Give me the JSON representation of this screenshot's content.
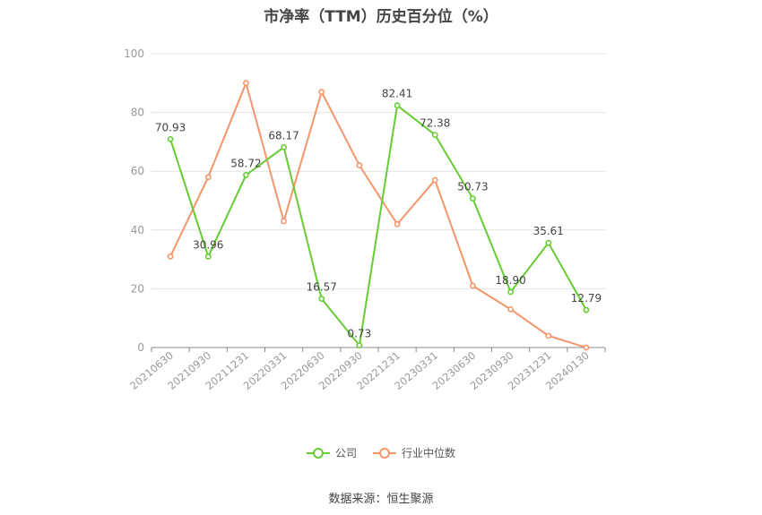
{
  "chart_data": {
    "type": "line",
    "title": "市净率（TTM）历史百分位（%）",
    "categories": [
      "20210630",
      "20210930",
      "20211231",
      "20220331",
      "20220630",
      "20220930",
      "20221231",
      "20230331",
      "20230630",
      "20230930",
      "20231231",
      "20240130"
    ],
    "series": [
      {
        "name": "公司",
        "color": "#66cc33",
        "values": [
          70.93,
          30.96,
          58.72,
          68.17,
          16.57,
          0.73,
          82.41,
          72.38,
          50.73,
          18.9,
          35.61,
          12.79
        ],
        "labels": [
          "70.93",
          "30.96",
          "58.72",
          "68.17",
          "16.57",
          "0.73",
          "82.41",
          "72.38",
          "50.73",
          "18.90",
          "35.61",
          "12.79"
        ]
      },
      {
        "name": "行业中位数",
        "color": "#f4956a",
        "values": [
          31,
          58,
          90,
          43,
          87,
          62,
          42,
          57,
          21,
          13,
          4,
          0
        ]
      }
    ],
    "yticks": [
      "0",
      "20",
      "40",
      "60",
      "80",
      "100"
    ],
    "ylim": [
      0,
      100
    ],
    "grid": true,
    "legend_position": "bottom"
  },
  "source": "数据来源：恒生聚源"
}
